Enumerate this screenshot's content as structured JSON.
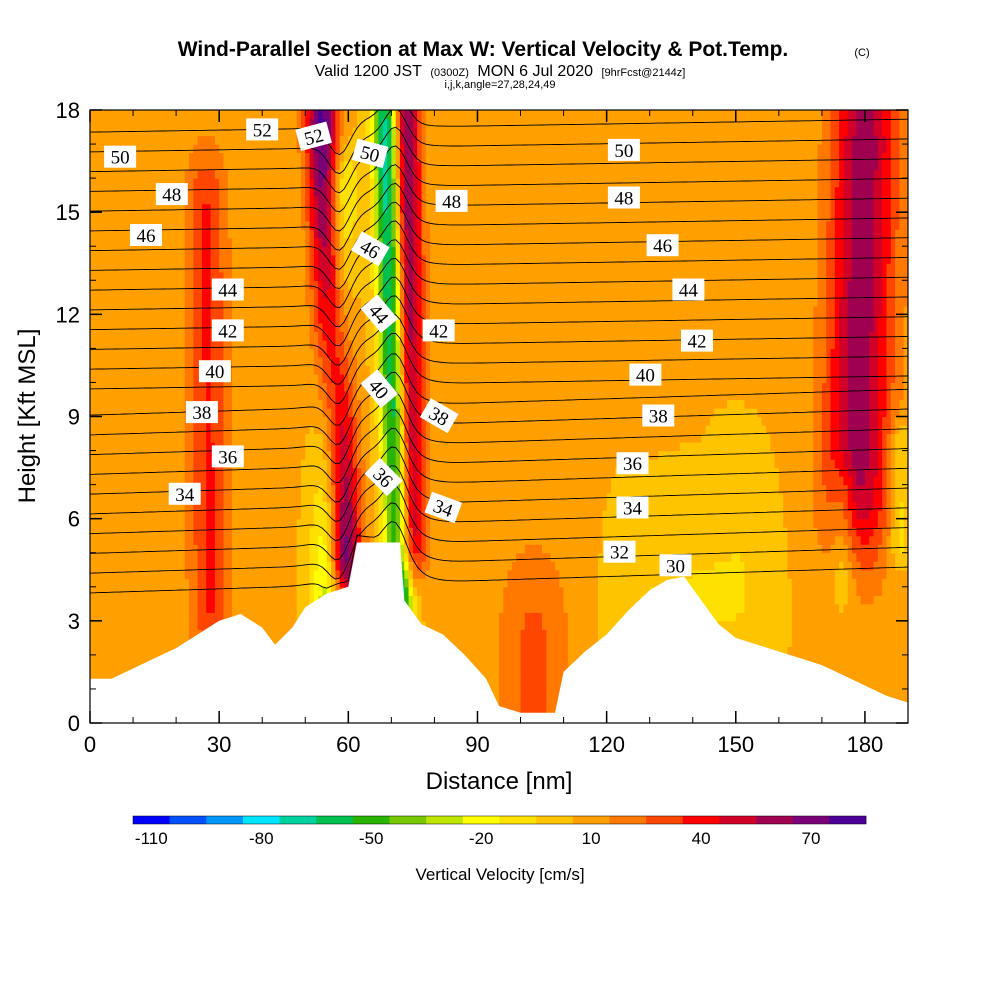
{
  "chart_data": {
    "type": "heatmap",
    "title": "Wind-Parallel Section at Max W: Vertical Velocity & Pot.Temp.",
    "title_mark": "(C)",
    "subtitle_main": "Valid 1200 JST",
    "subtitle_z": "(0300Z)",
    "subtitle_date": "MON 6 Jul 2020",
    "subtitle_fcst": "[9hrFcst@2144z]",
    "subtitle2": "i,j,k,angle=27,28,24,49",
    "xlabel": "Distance [nm]",
    "ylabel": "Height [Kft MSL]",
    "xlim": [
      0,
      190
    ],
    "ylim": [
      0,
      18
    ],
    "xticks": [
      "0",
      "30",
      "60",
      "90",
      "120",
      "150",
      "180"
    ],
    "yticks": [
      "0",
      "3",
      "6",
      "9",
      "12",
      "15",
      "18"
    ],
    "colorbar": {
      "label": "Vertical Velocity [cm/s]",
      "min": -115,
      "max": 80,
      "step": 10,
      "tick_labels": [
        "-110",
        "-80",
        "-50",
        "-20",
        "10",
        "40",
        "70"
      ],
      "colors": [
        "#0000ff",
        "#0050ff",
        "#0096ff",
        "#00e6ff",
        "#00d2a0",
        "#00c050",
        "#28b400",
        "#78c800",
        "#bee600",
        "#ffff00",
        "#ffe100",
        "#ffc400",
        "#ffa000",
        "#ff7800",
        "#ff4600",
        "#ff0000",
        "#d20028",
        "#a00050",
        "#7a0078",
        "#4b0096"
      ]
    },
    "terrain_kft": [
      [
        0,
        1.3
      ],
      [
        5,
        1.3
      ],
      [
        10,
        1.6
      ],
      [
        15,
        1.9
      ],
      [
        20,
        2.2
      ],
      [
        25,
        2.6
      ],
      [
        30,
        3.0
      ],
      [
        35,
        3.2
      ],
      [
        40,
        2.8
      ],
      [
        43,
        2.3
      ],
      [
        47,
        2.8
      ],
      [
        50,
        3.4
      ],
      [
        55,
        3.8
      ],
      [
        60,
        4.0
      ],
      [
        62,
        5.3
      ],
      [
        67,
        5.3
      ],
      [
        72,
        5.3
      ],
      [
        73,
        3.6
      ],
      [
        77,
        2.9
      ],
      [
        82,
        2.6
      ],
      [
        87,
        2.0
      ],
      [
        92,
        1.3
      ],
      [
        95,
        0.5
      ],
      [
        100,
        0.3
      ],
      [
        108,
        0.3
      ],
      [
        110,
        1.5
      ],
      [
        115,
        2.1
      ],
      [
        120,
        2.6
      ],
      [
        125,
        3.3
      ],
      [
        130,
        3.9
      ],
      [
        134,
        4.2
      ],
      [
        138,
        4.3
      ],
      [
        142,
        3.6
      ],
      [
        146,
        2.9
      ],
      [
        150,
        2.5
      ],
      [
        155,
        2.3
      ],
      [
        160,
        2.1
      ],
      [
        165,
        1.9
      ],
      [
        170,
        1.7
      ],
      [
        175,
        1.4
      ],
      [
        180,
        1.1
      ],
      [
        185,
        0.8
      ],
      [
        190,
        0.6
      ]
    ],
    "theta_label_unit": "C",
    "theta_labels": [
      "52",
      "52",
      "50",
      "50",
      "50",
      "48",
      "48",
      "48",
      "46",
      "46",
      "46",
      "44",
      "44",
      "44",
      "42",
      "42",
      "42",
      "40",
      "40",
      "40",
      "38",
      "38",
      "38",
      "36",
      "36",
      "36",
      "34",
      "34",
      "34",
      "32",
      "30"
    ],
    "theta_labels_pos": [
      [
        40,
        17.4,
        0
      ],
      [
        52,
        17.2,
        -15
      ],
      [
        65,
        16.7,
        15
      ],
      [
        7,
        16.6,
        0
      ],
      [
        124,
        16.8,
        0
      ],
      [
        19,
        15.5,
        0
      ],
      [
        84,
        15.3,
        0
      ],
      [
        124,
        15.4,
        0
      ],
      [
        13,
        14.3,
        0
      ],
      [
        65,
        13.9,
        30
      ],
      [
        133,
        14.0,
        0
      ],
      [
        32,
        12.7,
        0
      ],
      [
        67,
        12.0,
        50
      ],
      [
        139,
        12.7,
        0
      ],
      [
        32,
        11.5,
        0
      ],
      [
        81,
        11.5,
        0
      ],
      [
        141,
        11.2,
        0
      ],
      [
        29,
        10.3,
        0
      ],
      [
        67,
        9.8,
        50
      ],
      [
        129,
        10.2,
        0
      ],
      [
        26,
        9.1,
        0
      ],
      [
        81,
        9.0,
        30
      ],
      [
        132,
        9.0,
        0
      ],
      [
        32,
        7.8,
        0
      ],
      [
        68,
        7.2,
        45
      ],
      [
        126,
        7.6,
        0
      ],
      [
        22,
        6.7,
        0
      ],
      [
        82,
        6.3,
        20
      ],
      [
        126,
        6.3,
        0
      ],
      [
        123,
        5.0,
        0
      ],
      [
        136,
        4.6,
        0
      ]
    ],
    "theta_levels": [
      30,
      31,
      32,
      33,
      34,
      35,
      36,
      37,
      38,
      39,
      40,
      41,
      42,
      43,
      44,
      45,
      46,
      47,
      48,
      49,
      50,
      51,
      52,
      53
    ],
    "w_anomalies": [
      {
        "x0": 55,
        "y0": 3.6,
        "x1": 58,
        "y1": 15.5,
        "peak": -45,
        "sx": 2.6,
        "kind": "line"
      },
      {
        "x0": 59,
        "y0": 5.0,
        "x1": 54,
        "y1": 17.5,
        "peak": 75,
        "sx": 2.8,
        "kind": "line"
      },
      {
        "x0": 72,
        "y0": 3.8,
        "x1": 69,
        "y1": 17.5,
        "peak": -95,
        "sx": 2.2,
        "kind": "line"
      },
      {
        "x0": 74,
        "y0": 5.5,
        "x1": 73,
        "y1": 17.5,
        "peak": 70,
        "sx": 2.6,
        "kind": "line"
      },
      {
        "x0": 28,
        "y0": 3.6,
        "x1": 27,
        "y1": 15.0,
        "peak": 30,
        "sx": 3.5,
        "kind": "line"
      },
      {
        "x0": 178,
        "y0": 7.5,
        "x1": 180,
        "y1": 17.0,
        "peak": 55,
        "sx": 5.5,
        "kind": "line"
      },
      {
        "x0": 175,
        "y0": 4.5,
        "x1": 175,
        "y1": 6.5,
        "peak": -22,
        "sx": 2.2,
        "kind": "line"
      },
      {
        "x0": 188,
        "y0": 5.5,
        "x1": 188,
        "y1": 8.0,
        "peak": -20,
        "sx": 1.6,
        "kind": "line"
      },
      {
        "x0": 103,
        "y0": 0.5,
        "x1": 103,
        "y1": 2.0,
        "peak": 22,
        "sx": 6.0,
        "kind": "line"
      },
      {
        "x0": 130,
        "y0": 3.0,
        "x1": 150,
        "y1": 4.0,
        "peak": -12,
        "sx": 6.0,
        "kind": "line"
      }
    ]
  }
}
